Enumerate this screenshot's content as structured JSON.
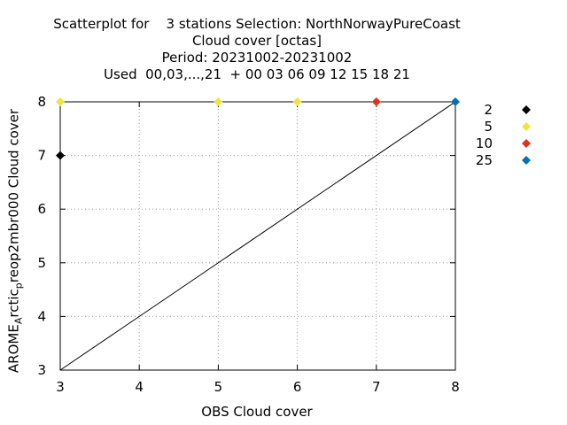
{
  "chart_data": {
    "type": "scatter",
    "title_lines": [
      "Scatterplot for    3 stations Selection: NorthNorwayPureCoast",
      "Cloud cover [octas]",
      "Period: 20231002-20231002",
      "Used  00,03,...,21  + 00 03 06 09 12 15 18 21"
    ],
    "xlabel": "OBS Cloud cover",
    "ylabel_parts": [
      "AROME",
      "A",
      "rctic",
      "p",
      "reop2mbr000 Cloud cover"
    ],
    "xlim": [
      3,
      8
    ],
    "ylim": [
      3,
      8
    ],
    "xticks": [
      "3",
      "4",
      "5",
      "6",
      "7",
      "8"
    ],
    "yticks": [
      "3",
      "4",
      "5",
      "6",
      "7",
      "8"
    ],
    "grid": true,
    "diagonal": true,
    "legend": [
      {
        "label": "2",
        "color": "#000000"
      },
      {
        "label": "5",
        "color": "#f0e442"
      },
      {
        "label": "10",
        "color": "#e0301e"
      },
      {
        "label": "25",
        "color": "#0072b2"
      }
    ],
    "points": [
      {
        "x": 3,
        "y": 7,
        "count_class": "2"
      },
      {
        "x": 3,
        "y": 8,
        "count_class": "5"
      },
      {
        "x": 5,
        "y": 8,
        "count_class": "5"
      },
      {
        "x": 6,
        "y": 8,
        "count_class": "5"
      },
      {
        "x": 7,
        "y": 8,
        "count_class": "10"
      },
      {
        "x": 8,
        "y": 8,
        "count_class": "25"
      }
    ]
  }
}
